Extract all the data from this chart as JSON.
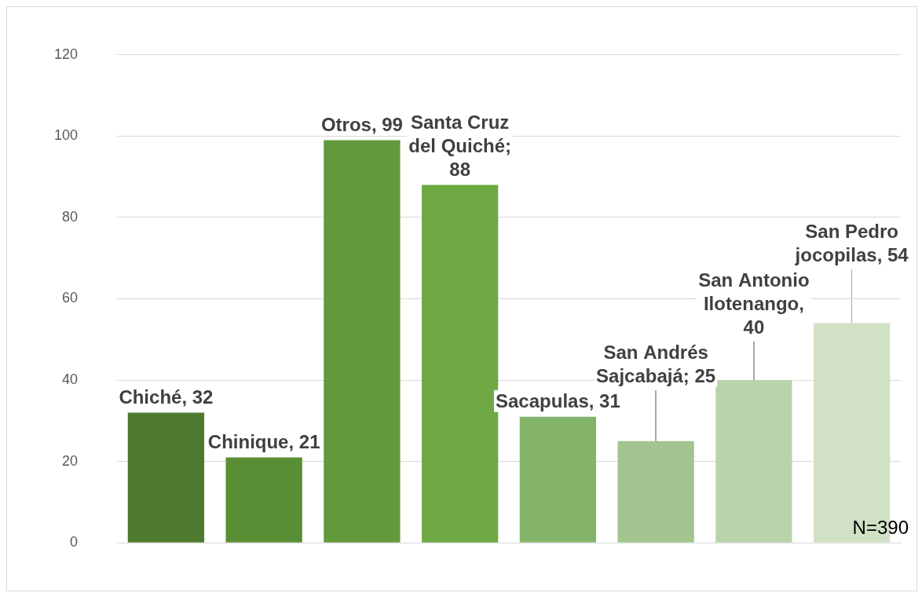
{
  "chart_data": {
    "type": "bar",
    "categories": [
      "Chiché",
      "Chinique",
      "Otros",
      "Santa Cruz del Quiché",
      "Sacapulas",
      "San Andrés Sajcabajá",
      "San Antonio Ilotenango",
      "San Pedro jocopilas"
    ],
    "values": [
      32,
      21,
      99,
      88,
      31,
      25,
      40,
      54
    ],
    "colors": [
      "#4e7a2f",
      "#5a8e35",
      "#629a3b",
      "#6ea944",
      "#84b46a",
      "#a2c48e",
      "#b9d4ab",
      "#d1e1c6"
    ],
    "value_labels": [
      ", 32",
      ", 21",
      ", 99",
      "; 88",
      ", 31",
      "; 25",
      ", 40",
      ", 54"
    ],
    "ylim": [
      0,
      120
    ],
    "yticks": [
      0,
      20,
      40,
      60,
      80,
      100,
      120
    ],
    "grid": "y",
    "tick_labels": "y",
    "legend": false,
    "annotations": [
      "N=390"
    ]
  }
}
